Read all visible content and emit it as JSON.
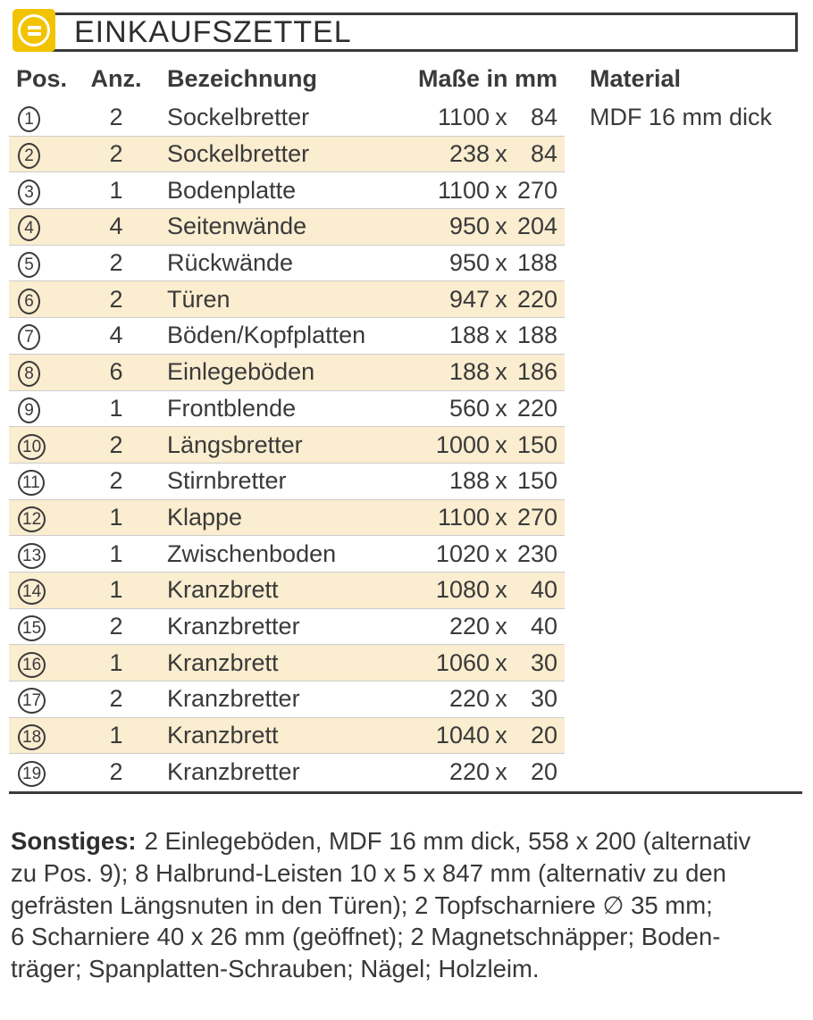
{
  "header": {
    "title": "EINKAUFSZETTEL",
    "icon": "equals-circle-icon"
  },
  "columns": {
    "pos": "Pos.",
    "anz": "Anz.",
    "bezeichnung": "Bezeichnung",
    "masse": "Maße in mm",
    "material": "Material"
  },
  "dim_separator": "x",
  "rows": [
    {
      "pos": "1",
      "anz": "2",
      "name": "Sockelbretter",
      "w": "1100",
      "h": "84",
      "material": "MDF 16 mm dick",
      "highlight": false
    },
    {
      "pos": "2",
      "anz": "2",
      "name": "Sockelbretter",
      "w": "238",
      "h": "84",
      "highlight": true
    },
    {
      "pos": "3",
      "anz": "1",
      "name": "Bodenplatte",
      "w": "1100",
      "h": "270",
      "highlight": false
    },
    {
      "pos": "4",
      "anz": "4",
      "name": "Seitenwände",
      "w": "950",
      "h": "204",
      "highlight": true
    },
    {
      "pos": "5",
      "anz": "2",
      "name": "Rückwände",
      "w": "950",
      "h": "188",
      "highlight": false
    },
    {
      "pos": "6",
      "anz": "2",
      "name": "Türen",
      "w": "947",
      "h": "220",
      "highlight": true
    },
    {
      "pos": "7",
      "anz": "4",
      "name": "Böden/Kopfplatten",
      "w": "188",
      "h": "188",
      "highlight": false
    },
    {
      "pos": "8",
      "anz": "6",
      "name": "Einlegeböden",
      "w": "188",
      "h": "186",
      "highlight": true
    },
    {
      "pos": "9",
      "anz": "1",
      "name": "Frontblende",
      "w": "560",
      "h": "220",
      "highlight": false
    },
    {
      "pos": "10",
      "anz": "2",
      "name": "Längsbretter",
      "w": "1000",
      "h": "150",
      "highlight": true
    },
    {
      "pos": "11",
      "anz": "2",
      "name": "Stirnbretter",
      "w": "188",
      "h": "150",
      "highlight": false
    },
    {
      "pos": "12",
      "anz": "1",
      "name": "Klappe",
      "w": "1100",
      "h": "270",
      "highlight": true
    },
    {
      "pos": "13",
      "anz": "1",
      "name": "Zwischenboden",
      "w": "1020",
      "h": "230",
      "highlight": false
    },
    {
      "pos": "14",
      "anz": "1",
      "name": "Kranzbrett",
      "w": "1080",
      "h": "40",
      "highlight": true
    },
    {
      "pos": "15",
      "anz": "2",
      "name": "Kranzbretter",
      "w": "220",
      "h": "40",
      "highlight": false
    },
    {
      "pos": "16",
      "anz": "1",
      "name": "Kranzbrett",
      "w": "1060",
      "h": "30",
      "highlight": true
    },
    {
      "pos": "17",
      "anz": "2",
      "name": "Kranzbretter",
      "w": "220",
      "h": "30",
      "highlight": false
    },
    {
      "pos": "18",
      "anz": "1",
      "name": "Kranzbrett",
      "w": "1040",
      "h": "20",
      "highlight": true
    },
    {
      "pos": "19",
      "anz": "2",
      "name": "Kranzbretter",
      "w": "220",
      "h": "20",
      "highlight": false
    }
  ],
  "notes": {
    "label": "Sonstiges:",
    "lines": [
      "2 Einlegeböden, MDF 16 mm dick, 558 x 200 (alternativ",
      "zu Pos. 9); 8 Halbrund-Leisten 10 x 5 x 847 mm (alternativ zu den",
      "gefrästen Längsnuten in den Türen); 2 Topfscharniere ∅ 35 mm;",
      "6 Scharniere  40 x 26 mm (geöffnet); 2 Magnetschnäpper; Boden-",
      "träger; Spanplatten-Schrauben; Nägel; Holzleim."
    ]
  },
  "colors": {
    "accent_yellow": "#F2C300",
    "row_highlight": "#FAEDD0",
    "rule_gray": "#CCCCCC",
    "dark_rule": "#3B3B3B",
    "text": "#3A3A3A"
  }
}
